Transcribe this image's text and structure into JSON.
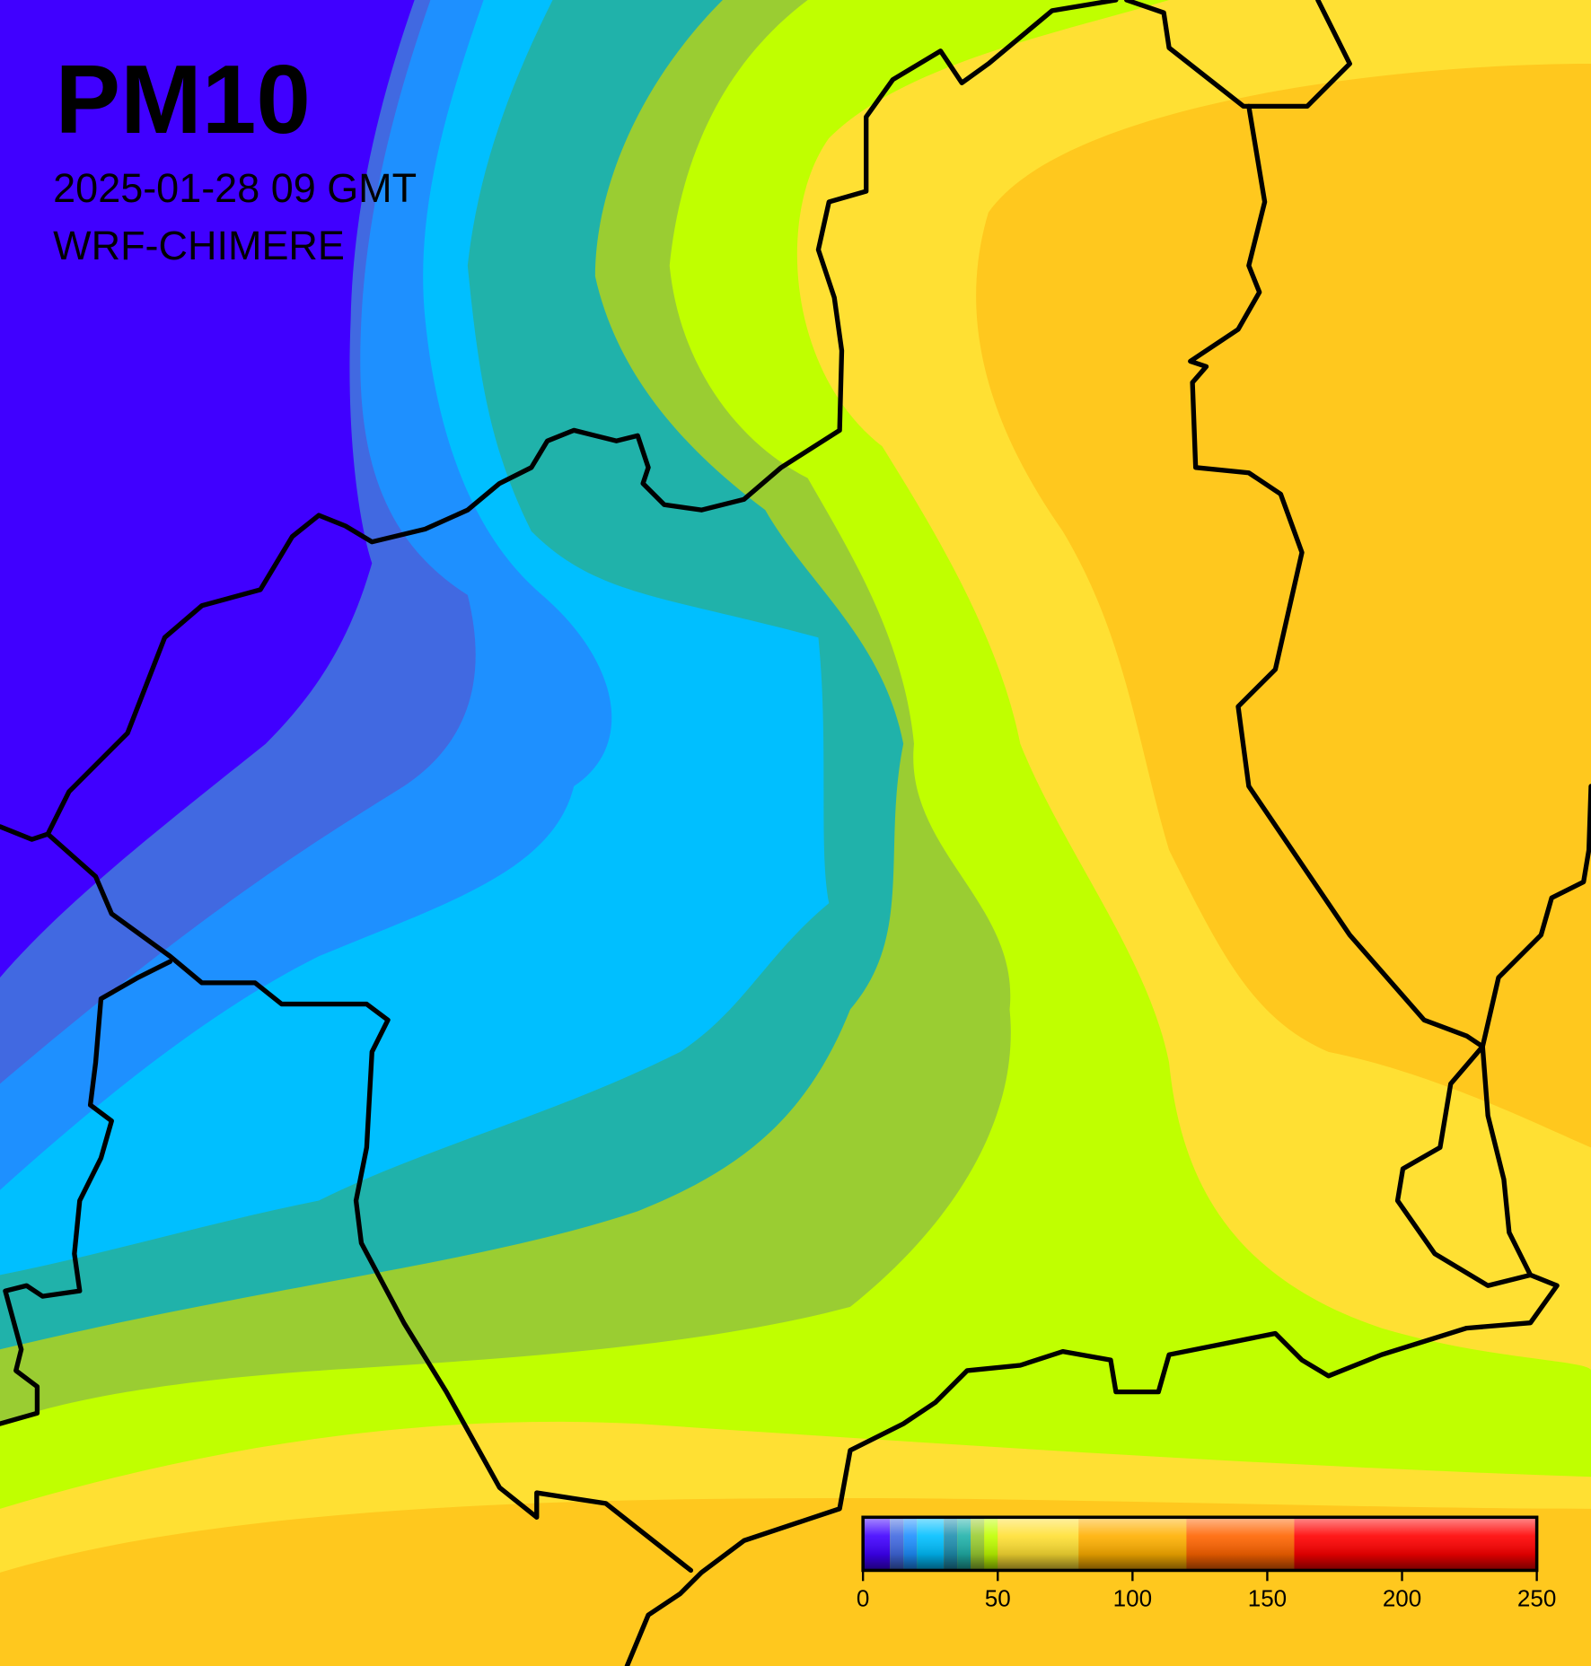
{
  "title": "PM10",
  "subtitle": "2025-01-28 09 GMT",
  "model": "WRF-CHIMERE",
  "colorbar": {
    "range": [
      0,
      250
    ],
    "ticks": [
      0,
      50,
      100,
      150,
      200,
      250
    ],
    "levels": [
      {
        "from": 0,
        "to": 10,
        "color": "#4000ff"
      },
      {
        "from": 10,
        "to": 15,
        "color": "#4169e1"
      },
      {
        "from": 15,
        "to": 20,
        "color": "#1e90ff"
      },
      {
        "from": 20,
        "to": 30,
        "color": "#00bfff"
      },
      {
        "from": 30,
        "to": 35,
        "color": "#1f8fb0"
      },
      {
        "from": 35,
        "to": 40,
        "color": "#20b2aa"
      },
      {
        "from": 40,
        "to": 45,
        "color": "#9acd32"
      },
      {
        "from": 45,
        "to": 50,
        "color": "#c0ff00"
      },
      {
        "from": 50,
        "to": 80,
        "color": "#ffe033"
      },
      {
        "from": 80,
        "to": 120,
        "color": "#ffb000"
      },
      {
        "from": 120,
        "to": 160,
        "color": "#ff6400"
      },
      {
        "from": 160,
        "to": 250,
        "color": "#ff0000"
      }
    ]
  }
}
